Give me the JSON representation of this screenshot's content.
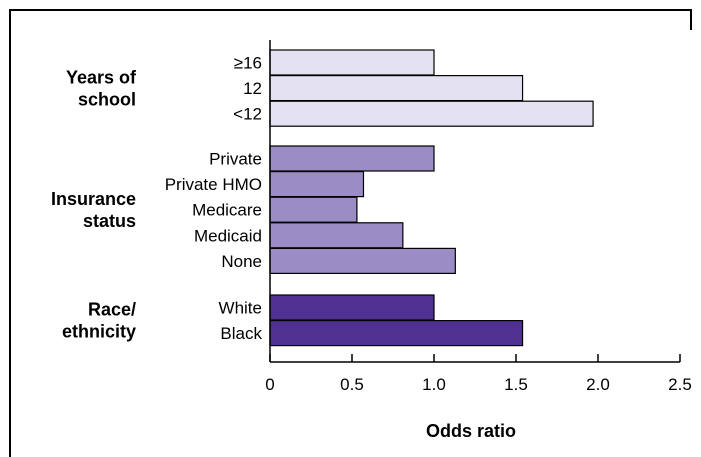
{
  "chart_data": {
    "type": "bar",
    "orientation": "horizontal",
    "title": "",
    "xlabel": "Odds ratio",
    "ylabel": "",
    "xlim": [
      0,
      2.5
    ],
    "xticks": [
      "0",
      "0.5",
      "1.0",
      "1.5",
      "2.0",
      "2.5"
    ],
    "grid": false,
    "groups": [
      {
        "label_lines": [
          "Years of",
          "school"
        ],
        "color": "#e4e1f2",
        "categories": [
          "≥16",
          "12",
          "<12"
        ],
        "values": [
          1.0,
          1.54,
          1.97
        ]
      },
      {
        "label_lines": [
          "Insurance",
          "status"
        ],
        "color": "#9b8cc6",
        "categories": [
          "Private",
          "Private HMO",
          "Medicare",
          "Medicaid",
          "None"
        ],
        "values": [
          1.0,
          0.57,
          0.53,
          0.81,
          1.13
        ]
      },
      {
        "label_lines": [
          "Race/",
          "ethnicity"
        ],
        "color": "#4e3191",
        "categories": [
          "White",
          "Black"
        ],
        "values": [
          1.0,
          1.54
        ]
      }
    ]
  }
}
